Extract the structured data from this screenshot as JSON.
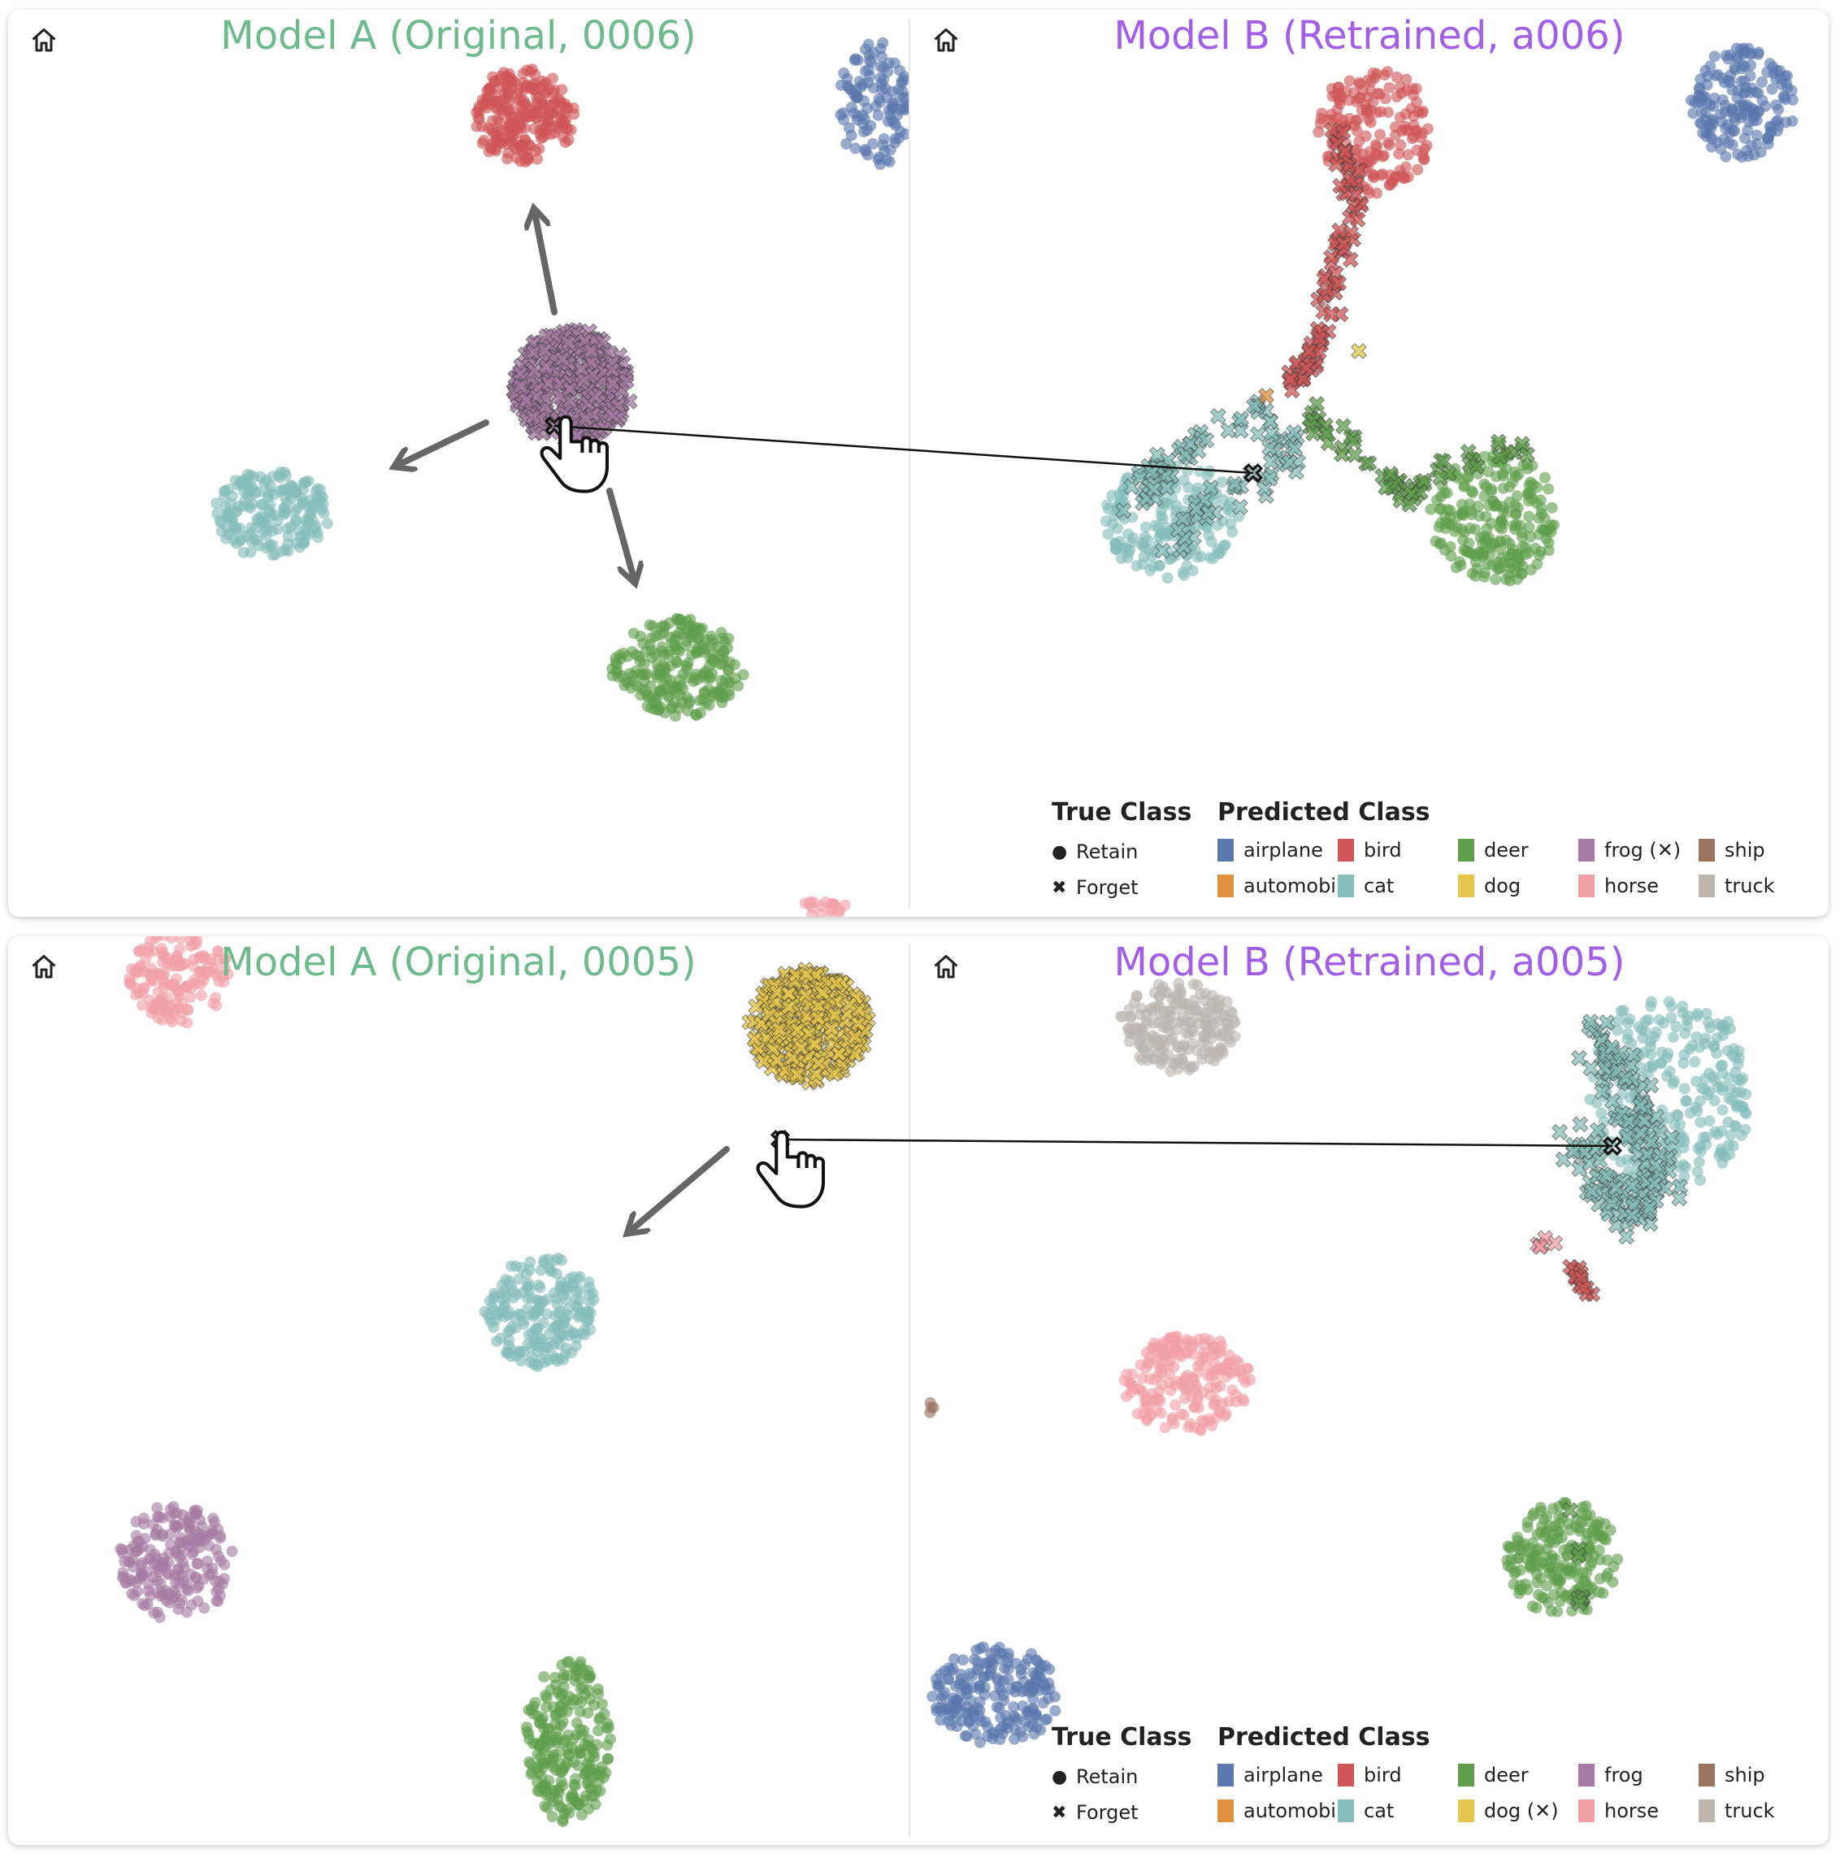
{
  "class_colors": {
    "airplane": "#5b78ad",
    "automobile": "#e0903f",
    "bird": "#cf5557",
    "cat": "#85bdba",
    "deer": "#5f9e4c",
    "dog": "#e4c64e",
    "frog": "#a67ba3",
    "horse": "#f1a0a6",
    "ship": "#9a745f",
    "truck": "#bdb5ae"
  },
  "icons": [
    "home-icon",
    "hand-pointer-icon",
    "arrow-icon"
  ],
  "figures": [
    {
      "model_a_title": "Model A (Original, 0006)",
      "model_b_title": "Model B (Retrained, a006)",
      "legend": {
        "true_class_title": "True Class",
        "retain_label": "Retain",
        "forget_label": "Forget",
        "predicted_class_title": "Predicted Class",
        "classes": [
          "airplane",
          "automobile",
          "bird",
          "cat",
          "deer",
          "dog",
          "frog (✕)",
          "horse",
          "ship",
          "truck"
        ]
      }
    },
    {
      "model_a_title": "Model A (Original, 0005)",
      "model_b_title": "Model B (Retrained, a005)",
      "legend": {
        "true_class_title": "True Class",
        "retain_label": "Retain",
        "forget_label": "Forget",
        "predicted_class_title": "Predicted Class",
        "classes": [
          "airplane",
          "automobile",
          "bird",
          "cat",
          "deer",
          "dog (✕)",
          "frog",
          "horse",
          "ship",
          "truck"
        ]
      }
    }
  ],
  "chart_data": [
    {
      "type": "scatter",
      "model_a_title": "Model A (Original, 0006)",
      "model_b_title": "Model B (Retrained, a006)",
      "forget_class": "frog",
      "legend_placement": "bottom-right",
      "series": [
        {
          "name": "bird",
          "panel": "A",
          "marker": "retain"
        },
        {
          "name": "airplane",
          "panel": "A",
          "marker": "retain"
        },
        {
          "name": "frog",
          "panel": "A",
          "marker": "forget"
        },
        {
          "name": "cat",
          "panel": "A",
          "marker": "retain"
        },
        {
          "name": "deer",
          "panel": "A",
          "marker": "retain"
        },
        {
          "name": "horse",
          "panel": "A",
          "marker": "retain"
        },
        {
          "name": "bird",
          "panel": "B",
          "marker": "retain"
        },
        {
          "name": "bird",
          "panel": "B",
          "marker": "forget"
        },
        {
          "name": "airplane",
          "panel": "B",
          "marker": "retain"
        },
        {
          "name": "cat",
          "panel": "B",
          "marker": "retain"
        },
        {
          "name": "cat",
          "panel": "B",
          "marker": "forget"
        },
        {
          "name": "deer",
          "panel": "B",
          "marker": "retain"
        },
        {
          "name": "deer",
          "panel": "B",
          "marker": "forget"
        },
        {
          "name": "automobile",
          "panel": "B",
          "marker": "forget"
        },
        {
          "name": "dog",
          "panel": "B",
          "marker": "forget"
        }
      ]
    },
    {
      "type": "scatter",
      "model_a_title": "Model A (Original, 0005)",
      "model_b_title": "Model B (Retrained, a005)",
      "forget_class": "dog",
      "legend_placement": "bottom-right",
      "series": [
        {
          "name": "horse",
          "panel": "A",
          "marker": "retain"
        },
        {
          "name": "dog",
          "panel": "A",
          "marker": "forget"
        },
        {
          "name": "cat",
          "panel": "A",
          "marker": "retain"
        },
        {
          "name": "frog",
          "panel": "A",
          "marker": "retain"
        },
        {
          "name": "deer",
          "panel": "A",
          "marker": "retain"
        },
        {
          "name": "truck",
          "panel": "B",
          "marker": "retain"
        },
        {
          "name": "cat",
          "panel": "B",
          "marker": "retain"
        },
        {
          "name": "cat",
          "panel": "B",
          "marker": "forget"
        },
        {
          "name": "bird",
          "panel": "B",
          "marker": "forget"
        },
        {
          "name": "horse",
          "panel": "B",
          "marker": "forget"
        },
        {
          "name": "horse",
          "panel": "B",
          "marker": "retain"
        },
        {
          "name": "deer",
          "panel": "B",
          "marker": "retain"
        },
        {
          "name": "deer",
          "panel": "B",
          "marker": "forget"
        },
        {
          "name": "airplane",
          "panel": "B",
          "marker": "retain"
        },
        {
          "name": "ship",
          "panel": "B",
          "marker": "retain"
        }
      ]
    }
  ]
}
